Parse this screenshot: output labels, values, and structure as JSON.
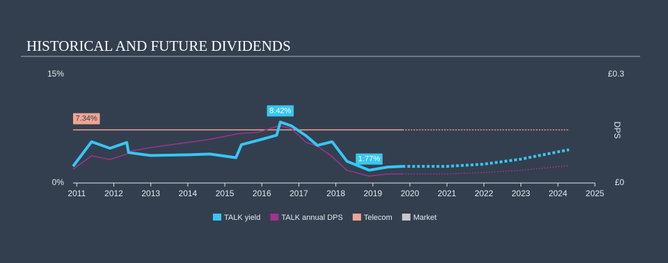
{
  "chart_data": {
    "type": "line",
    "title": "HISTORICAL AND FUTURE DIVIDENDS",
    "y2_label": "DPS",
    "x": [
      2010.9,
      2011.4,
      2011.9,
      2012.35,
      2012.4,
      2013,
      2014,
      2014.6,
      2015.3,
      2015.45,
      2015.9,
      2016.4,
      2016.5,
      2016.8,
      2017.2,
      2017.5,
      2017.9,
      2018.3,
      2018.9,
      2019.4,
      2019.8,
      2020,
      2021,
      2022,
      2023,
      2024.3
    ],
    "forecast_start": 2019.8,
    "series": [
      {
        "name": "TALK yield",
        "color": "#38c6f4",
        "axis": "y",
        "values": [
          2.3,
          5.7,
          4.8,
          5.6,
          4.2,
          3.8,
          3.9,
          4.0,
          3.5,
          5.3,
          5.9,
          6.6,
          8.42,
          7.9,
          6.5,
          5.2,
          5.7,
          3.0,
          1.77,
          2.2,
          2.3,
          2.3,
          2.3,
          2.6,
          3.3,
          4.6
        ],
        "value_labels": [
          null,
          null,
          null,
          null,
          null,
          null,
          null,
          null,
          null,
          null,
          null,
          null,
          "8.42%",
          null,
          null,
          null,
          null,
          null,
          "1.77%",
          null,
          null,
          null,
          null,
          null,
          null,
          null
        ]
      },
      {
        "name": "TALK annual DPS",
        "color": "#a0338e",
        "axis": "y2",
        "values": [
          0.038,
          0.075,
          0.065,
          0.08,
          0.087,
          0.098,
          0.112,
          0.121,
          0.135,
          0.137,
          0.14,
          0.156,
          0.158,
          0.15,
          0.112,
          0.102,
          0.073,
          0.035,
          0.019,
          0.025,
          0.025,
          0.025,
          0.025,
          0.029,
          0.035,
          0.048
        ]
      },
      {
        "name": "Telecom",
        "color": "#f2a493",
        "axis": "y",
        "values": [
          7.34,
          7.34,
          7.34,
          7.34,
          7.34,
          7.34,
          7.34,
          7.34,
          7.34,
          7.34,
          7.34,
          7.34,
          7.34,
          7.34,
          7.34,
          7.34,
          7.34,
          7.34,
          7.34,
          7.34,
          7.34,
          7.34,
          7.34,
          7.34,
          7.34,
          7.34
        ],
        "value_labels": [
          "7.34%",
          null,
          null,
          null,
          null,
          null,
          null,
          null,
          null,
          null,
          null,
          null,
          null,
          null,
          null,
          null,
          null,
          null,
          null,
          null,
          null,
          null,
          null,
          null,
          null,
          null
        ]
      },
      {
        "name": "Market",
        "color": "#c8c8c8",
        "axis": "y",
        "values": [
          null,
          null,
          null,
          null,
          null,
          null,
          null,
          null,
          null,
          null,
          null,
          null,
          null,
          null,
          null,
          null,
          null,
          null,
          null,
          null,
          null,
          null,
          null,
          null,
          null,
          null
        ]
      }
    ],
    "xlim": [
      2010.9,
      2025
    ],
    "xticks": [
      2011,
      2012,
      2013,
      2014,
      2015,
      2016,
      2017,
      2018,
      2019,
      2020,
      2021,
      2022,
      2023,
      2024,
      2025
    ],
    "ylim": [
      0,
      15
    ],
    "yticks": [
      {
        "value": 0,
        "label": "0%"
      },
      {
        "value": 15,
        "label": "15%"
      }
    ],
    "y2lim": [
      0,
      0.3
    ],
    "y2ticks": [
      {
        "value": 0,
        "label": "£0"
      },
      {
        "value": 0.3,
        "label": "£0.3"
      }
    ]
  }
}
